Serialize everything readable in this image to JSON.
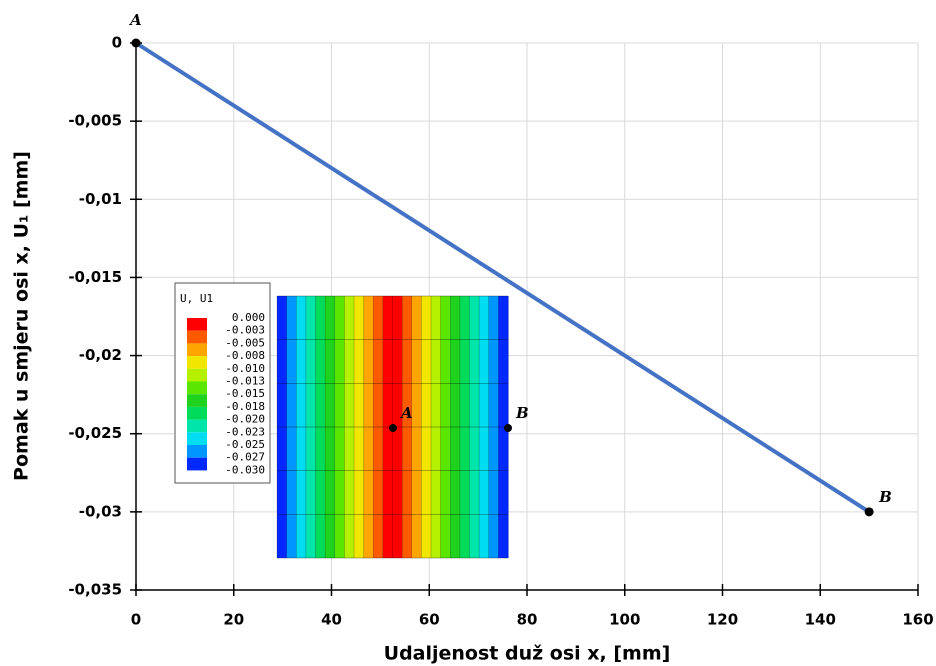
{
  "chart_data": {
    "type": "line",
    "x_label": "Udaljenost duž osi x, [mm]",
    "y_label": "Pomak u smjeru osi x, U₁ [mm]",
    "x": [
      0,
      150
    ],
    "series": [
      {
        "color": "#4472c4",
        "values": [
          0,
          -0.03
        ]
      }
    ],
    "point_labels": [
      "A",
      "B"
    ],
    "xlim": [
      0,
      160
    ],
    "xticks": [
      0,
      20,
      40,
      60,
      80,
      100,
      120,
      140,
      160
    ],
    "ylim": [
      -0.035,
      0
    ],
    "yticks": [
      {
        "value": -0.035,
        "label": "-0,035"
      },
      {
        "value": -0.03,
        "label": "-0,03"
      },
      {
        "value": -0.025,
        "label": "-0,025"
      },
      {
        "value": -0.02,
        "label": "-0,02"
      },
      {
        "value": -0.015,
        "label": "-0,015"
      },
      {
        "value": -0.01,
        "label": "-0,01"
      },
      {
        "value": -0.005,
        "label": "-0,005"
      },
      0
    ],
    "grid": true,
    "inset": {
      "legend_title": "U, U1",
      "legend_labels": [
        "0.000",
        "-0.003",
        "-0.005",
        "-0.008",
        "-0.010",
        "-0.013",
        "-0.015",
        "-0.018",
        "-0.020",
        "-0.023",
        "-0.025",
        "-0.027",
        "-0.030"
      ],
      "legend_colors": [
        "#ff0000",
        "#ff5a00",
        "#ffa500",
        "#f0e600",
        "#b4f000",
        "#5ae600",
        "#1ed21e",
        "#00dc5a",
        "#00e6aa",
        "#00dcf0",
        "#0096ff",
        "#0028ff"
      ],
      "point_labels": [
        "A",
        "B"
      ]
    }
  }
}
